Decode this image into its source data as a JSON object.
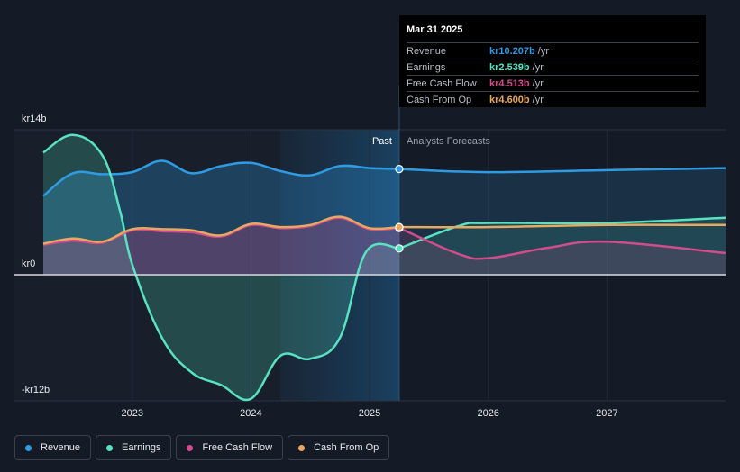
{
  "chart_data": {
    "type": "area",
    "title": "",
    "y_unit_prefix": "kr",
    "ylim": [
      -12,
      14
    ],
    "y_ticks": [
      {
        "value": 14,
        "label": "kr14b"
      },
      {
        "value": 0,
        "label": "kr0"
      },
      {
        "value": -12,
        "label": "-kr12b"
      }
    ],
    "xlim": [
      2022.25,
      2028.0
    ],
    "x_ticks": [
      {
        "value": 2023,
        "label": "2023"
      },
      {
        "value": 2024,
        "label": "2024"
      },
      {
        "value": 2025,
        "label": "2025"
      },
      {
        "value": 2026,
        "label": "2026"
      },
      {
        "value": 2027,
        "label": "2027"
      }
    ],
    "divider_x": 2025.25,
    "past_label": "Past",
    "forecast_label": "Analysts Forecasts",
    "series": [
      {
        "name": "Revenue",
        "color": "#2f9be2",
        "fill": true,
        "points": [
          [
            2022.25,
            7.6
          ],
          [
            2022.5,
            9.8
          ],
          [
            2022.75,
            9.7
          ],
          [
            2023.0,
            9.9
          ],
          [
            2023.25,
            11.0
          ],
          [
            2023.5,
            9.8
          ],
          [
            2023.75,
            10.5
          ],
          [
            2024.0,
            10.8
          ],
          [
            2024.25,
            10.0
          ],
          [
            2024.5,
            9.6
          ],
          [
            2024.75,
            10.5
          ],
          [
            2025.0,
            10.3
          ],
          [
            2025.25,
            10.207
          ]
        ],
        "forecast": [
          [
            2025.25,
            10.207
          ],
          [
            2026.0,
            9.9
          ],
          [
            2027.0,
            10.1
          ],
          [
            2028.0,
            10.3
          ]
        ]
      },
      {
        "name": "Earnings",
        "color": "#58e2c2",
        "fill": true,
        "points": [
          [
            2022.25,
            11.8
          ],
          [
            2022.5,
            13.5
          ],
          [
            2022.75,
            11.5
          ],
          [
            2022.9,
            6.0
          ],
          [
            2023.0,
            1.0
          ],
          [
            2023.25,
            -6.0
          ],
          [
            2023.5,
            -9.3
          ],
          [
            2023.75,
            -10.5
          ],
          [
            2024.0,
            -11.8
          ],
          [
            2024.25,
            -7.7
          ],
          [
            2024.5,
            -8.0
          ],
          [
            2024.75,
            -6.0
          ],
          [
            2024.97,
            2.2
          ],
          [
            2025.25,
            2.539
          ]
        ],
        "forecast": [
          [
            2025.25,
            2.539
          ],
          [
            2025.75,
            4.7
          ],
          [
            2026.0,
            5.0
          ],
          [
            2027.0,
            5.0
          ],
          [
            2028.0,
            5.5
          ]
        ]
      },
      {
        "name": "Free Cash Flow",
        "color": "#d14d8a",
        "fill": true,
        "points": [
          [
            2022.25,
            2.9
          ],
          [
            2022.5,
            3.3
          ],
          [
            2022.75,
            3.1
          ],
          [
            2023.0,
            4.3
          ],
          [
            2023.25,
            4.2
          ],
          [
            2023.5,
            4.1
          ],
          [
            2023.75,
            3.7
          ],
          [
            2024.0,
            4.8
          ],
          [
            2024.25,
            4.5
          ],
          [
            2024.5,
            4.7
          ],
          [
            2024.75,
            5.5
          ],
          [
            2025.0,
            4.4
          ],
          [
            2025.25,
            4.513
          ]
        ],
        "forecast": [
          [
            2025.25,
            4.513
          ],
          [
            2025.75,
            2.0
          ],
          [
            2026.0,
            1.6
          ],
          [
            2026.5,
            2.6
          ],
          [
            2027.0,
            3.2
          ],
          [
            2028.0,
            2.1
          ]
        ]
      },
      {
        "name": "Cash From Op",
        "color": "#e8a860",
        "fill": false,
        "points": [
          [
            2022.25,
            3.0
          ],
          [
            2022.5,
            3.5
          ],
          [
            2022.75,
            3.2
          ],
          [
            2023.0,
            4.4
          ],
          [
            2023.25,
            4.4
          ],
          [
            2023.5,
            4.3
          ],
          [
            2023.75,
            3.8
          ],
          [
            2024.0,
            4.9
          ],
          [
            2024.25,
            4.6
          ],
          [
            2024.5,
            4.8
          ],
          [
            2024.75,
            5.6
          ],
          [
            2025.0,
            4.5
          ],
          [
            2025.25,
            4.6
          ]
        ],
        "forecast": [
          [
            2025.25,
            4.6
          ],
          [
            2026.0,
            4.6
          ],
          [
            2027.0,
            4.8
          ],
          [
            2028.0,
            4.8
          ]
        ]
      }
    ]
  },
  "tooltip": {
    "date": "Mar 31 2025",
    "unit": "/yr",
    "rows": [
      {
        "name": "Revenue",
        "value": "kr10.207b",
        "color": "#2f9be2"
      },
      {
        "name": "Earnings",
        "value": "kr2.539b",
        "color": "#58e2c2"
      },
      {
        "name": "Free Cash Flow",
        "value": "kr4.513b",
        "color": "#d14d8a"
      },
      {
        "name": "Cash From Op",
        "value": "kr4.600b",
        "color": "#e8a860"
      }
    ]
  },
  "legend": [
    {
      "label": "Revenue",
      "color": "#2f9be2"
    },
    {
      "label": "Earnings",
      "color": "#58e2c2"
    },
    {
      "label": "Free Cash Flow",
      "color": "#d14d8a"
    },
    {
      "label": "Cash From Op",
      "color": "#e8a860"
    }
  ]
}
